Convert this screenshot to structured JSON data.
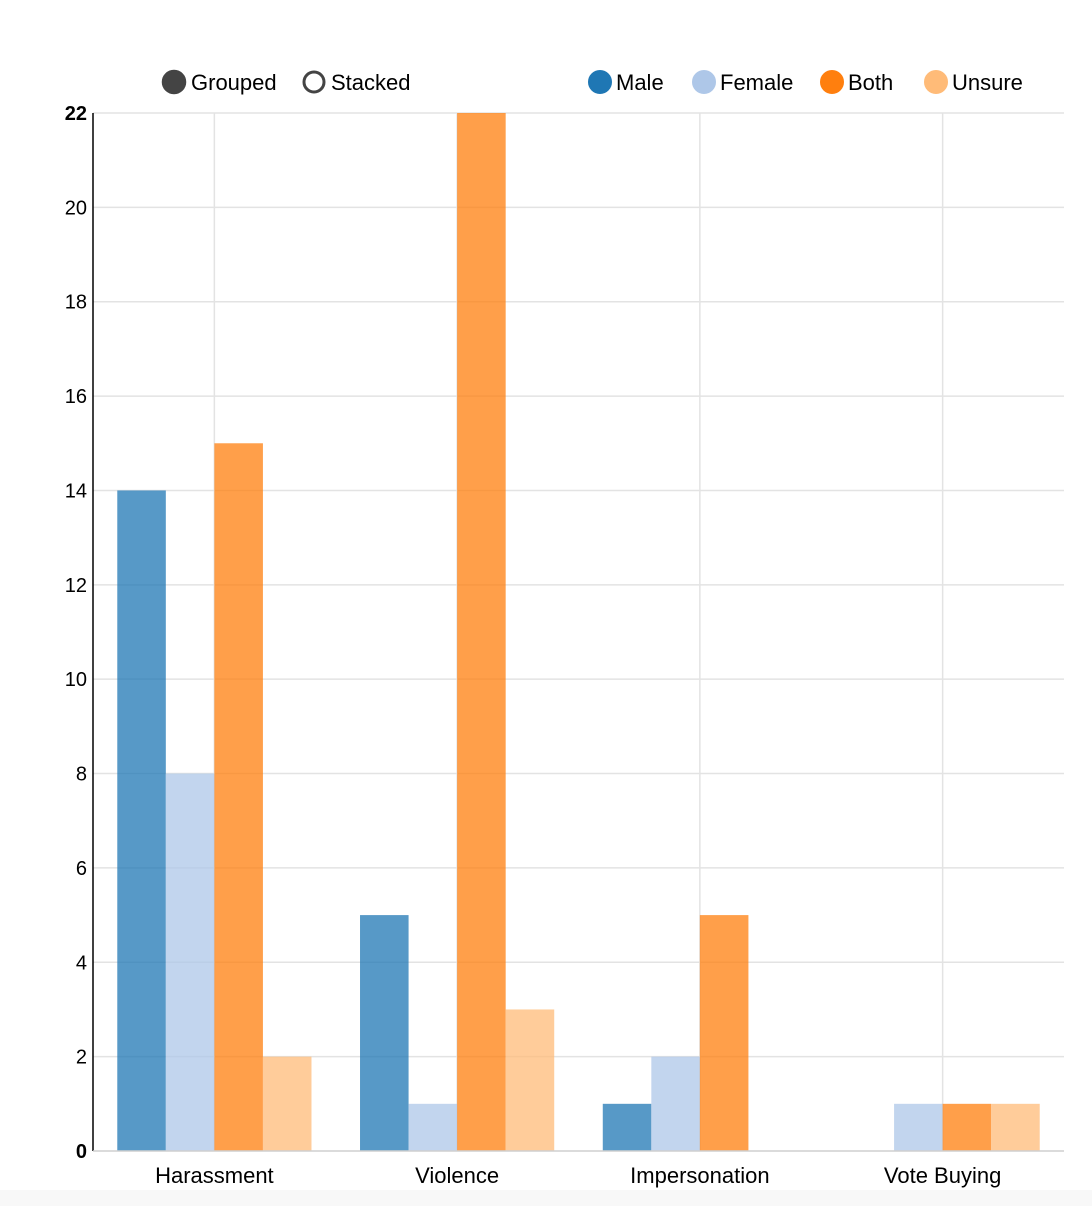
{
  "controls": {
    "grouped_label": "Grouped",
    "stacked_label": "Stacked",
    "selected": "Grouped"
  },
  "chart_data": {
    "type": "bar",
    "mode": "grouped",
    "categories": [
      "Harassment",
      "Violence",
      "Impersonation",
      "Vote Buying"
    ],
    "series": [
      {
        "name": "Male",
        "color": "#1f77b4",
        "values": [
          14,
          5,
          1,
          0
        ]
      },
      {
        "name": "Female",
        "color": "#aec7e8",
        "values": [
          8,
          1,
          2,
          1
        ]
      },
      {
        "name": "Both",
        "color": "#ff7f0e",
        "values": [
          15,
          22,
          5,
          1
        ]
      },
      {
        "name": "Unsure",
        "color": "#ffbb78",
        "values": [
          2,
          3,
          0,
          1
        ]
      }
    ],
    "ylim": [
      0,
      22
    ],
    "yticks": [
      "0",
      "2",
      "4",
      "6",
      "8",
      "10",
      "12",
      "14",
      "16",
      "18",
      "20",
      "22"
    ],
    "grid": true,
    "legend_position": "top-right",
    "title": "",
    "xlabel": "",
    "ylabel": ""
  }
}
